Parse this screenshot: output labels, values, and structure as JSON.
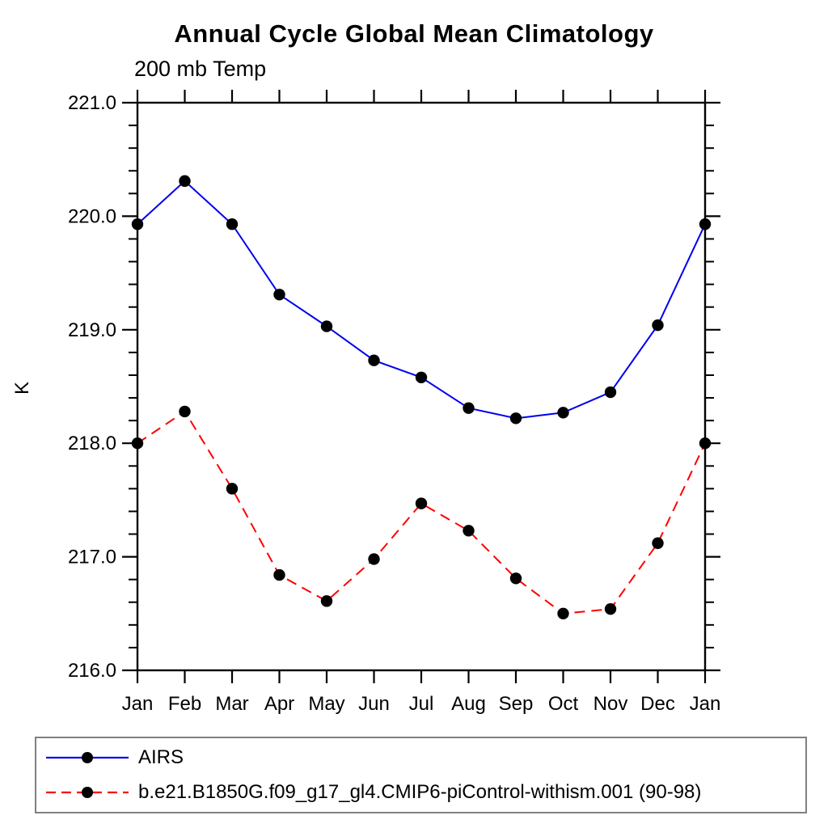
{
  "page": {
    "background": "#ffffff"
  },
  "chart_data": {
    "type": "line",
    "title": "Annual Cycle Global Mean Climatology",
    "subtitle": "200 mb Temp",
    "ylabel": "K",
    "xlabel": "",
    "x_categories": [
      "Jan",
      "Feb",
      "Mar",
      "Apr",
      "May",
      "Jun",
      "Jul",
      "Aug",
      "Sep",
      "Oct",
      "Nov",
      "Dec",
      "Jan"
    ],
    "ylim": [
      216.0,
      221.0
    ],
    "ytick_interval": 1.0,
    "yminor_interval": 0.2,
    "ytick_labels": [
      "216.0",
      "217.0",
      "218.0",
      "219.0",
      "220.0",
      "221.0"
    ],
    "grid": false,
    "axis_color": "#000000",
    "marker": "filled-circle",
    "marker_color": "#000000",
    "legend": {
      "position": "bottom-left",
      "border_color": "#808080"
    },
    "series": [
      {
        "name": "AIRS",
        "color": "#0000ee",
        "style": "solid",
        "values": [
          219.93,
          220.31,
          219.93,
          219.31,
          219.03,
          218.73,
          218.58,
          218.31,
          218.22,
          218.27,
          218.45,
          219.04,
          219.93
        ]
      },
      {
        "name": "b.e21.B1850G.f09_g17_gl4.CMIP6-piControl-withism.001 (90-98)",
        "color": "#ff0000",
        "style": "dashed",
        "values": [
          218.0,
          218.28,
          217.6,
          216.84,
          216.61,
          216.98,
          217.47,
          217.23,
          216.81,
          216.5,
          216.54,
          217.12,
          218.0
        ]
      }
    ]
  }
}
